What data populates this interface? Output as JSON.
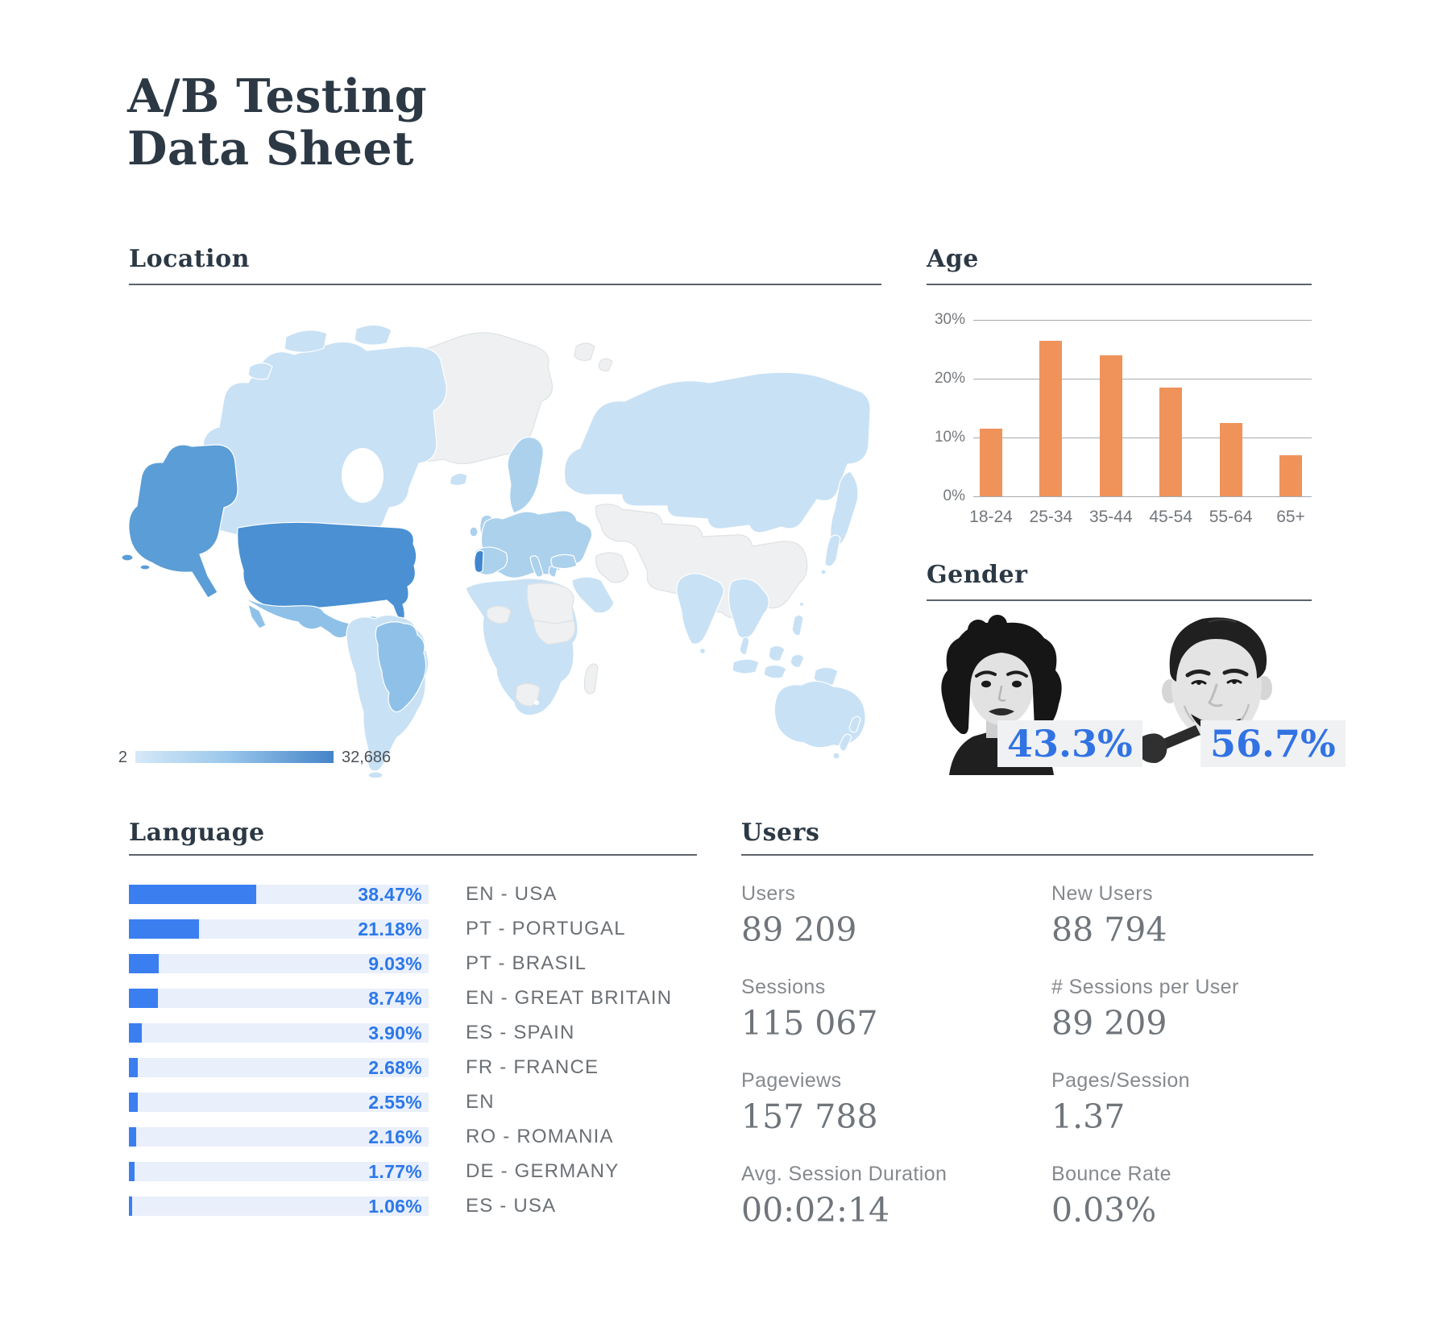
{
  "title": {
    "line1": "A/B Testing",
    "line2": "Data Sheet"
  },
  "sections": {
    "location": {
      "heading": "Location",
      "legend_min": "2",
      "legend_max": "32,686"
    },
    "age": {
      "heading": "Age",
      "yticks": [
        "30%",
        "20%",
        "10%",
        "0%"
      ],
      "categories": [
        "18-24",
        "25-34",
        "35-44",
        "45-54",
        "55-64",
        "65+"
      ],
      "values": [
        11.5,
        26.5,
        24,
        18.5,
        12.5,
        7
      ]
    },
    "gender": {
      "heading": "Gender",
      "female_pct": "43.3%",
      "male_pct": "56.7%"
    },
    "language": {
      "heading": "Language",
      "items": [
        {
          "pct": "38.47%",
          "value": 38.47,
          "label": "EN - USA"
        },
        {
          "pct": "21.18%",
          "value": 21.18,
          "label": "PT - PORTUGAL"
        },
        {
          "pct": "9.03%",
          "value": 9.03,
          "label": "PT - BRASIL"
        },
        {
          "pct": "8.74%",
          "value": 8.74,
          "label": "EN - GREAT BRITAIN"
        },
        {
          "pct": "3.90%",
          "value": 3.9,
          "label": "ES - SPAIN"
        },
        {
          "pct": "2.68%",
          "value": 2.68,
          "label": "FR - FRANCE"
        },
        {
          "pct": "2.55%",
          "value": 2.55,
          "label": "EN"
        },
        {
          "pct": "2.16%",
          "value": 2.16,
          "label": "RO - ROMANIA"
        },
        {
          "pct": "1.77%",
          "value": 1.77,
          "label": "DE - GERMANY"
        },
        {
          "pct": "1.06%",
          "value": 1.06,
          "label": "ES - USA"
        }
      ]
    },
    "users": {
      "heading": "Users",
      "stats": [
        {
          "label": "Users",
          "value": "89 209"
        },
        {
          "label": "New Users",
          "value": "88 794"
        },
        {
          "label": "Sessions",
          "value": "115 067"
        },
        {
          "label": "# Sessions per User",
          "value": "89 209"
        },
        {
          "label": "Pageviews",
          "value": "157 788"
        },
        {
          "label": "Pages/Session",
          "value": "1.37"
        },
        {
          "label": "Avg. Session Duration",
          "value": "00:02:14"
        },
        {
          "label": "Bounce Rate",
          "value": "0.03%"
        }
      ]
    }
  },
  "colors": {
    "heading_dark": "#2c3945",
    "age_bar_orange": "#ef935b",
    "language_blue": "#3b7ef0",
    "gender_blue": "#3273e3",
    "map_scale_low": "#d6e9f8",
    "map_scale_high": "#4484c8"
  },
  "chart_data": [
    {
      "type": "heatmap",
      "subtype": "world-choropleth",
      "title": "Location",
      "colorscale_range": [
        2,
        32686
      ],
      "legend_labels": [
        "2",
        "32,686"
      ],
      "highlights": [
        {
          "region": "USA",
          "level": "highest"
        },
        {
          "region": "Alaska",
          "level": "high"
        },
        {
          "region": "Portugal",
          "level": "high"
        },
        {
          "region": "Brazil",
          "level": "medium"
        },
        {
          "region": "Mexico / Central America",
          "level": "medium"
        },
        {
          "region": "Europe",
          "level": "low-medium"
        },
        {
          "region": "Canada / Russia / Africa / India / Australia",
          "level": "low"
        },
        {
          "region": "Greenland / China / Central Asia",
          "level": "no-data"
        }
      ]
    },
    {
      "type": "bar",
      "title": "Age",
      "categories": [
        "18-24",
        "25-34",
        "35-44",
        "45-54",
        "55-64",
        "65+"
      ],
      "values": [
        11.5,
        26.5,
        24,
        18.5,
        12.5,
        7
      ],
      "ylim": [
        0,
        30
      ],
      "yticks": [
        "0%",
        "10%",
        "20%",
        "30%"
      ],
      "grid": true,
      "bar_color": "#ef935b"
    },
    {
      "type": "pie",
      "title": "Gender",
      "categories": [
        "Female",
        "Male"
      ],
      "values": [
        43.3,
        56.7
      ],
      "value_labels": [
        "43.3%",
        "56.7%"
      ]
    },
    {
      "type": "bar",
      "orientation": "horizontal",
      "title": "Language",
      "categories": [
        "EN - USA",
        "PT - PORTUGAL",
        "PT - BRASIL",
        "EN - GREAT BRITAIN",
        "ES - SPAIN",
        "FR - FRANCE",
        "EN",
        "RO - ROMANIA",
        "DE - GERMANY",
        "ES - USA"
      ],
      "values": [
        38.47,
        21.18,
        9.03,
        8.74,
        3.9,
        2.68,
        2.55,
        2.16,
        1.77,
        1.06
      ],
      "value_labels": [
        "38.47%",
        "21.18%",
        "9.03%",
        "8.74%",
        "3.90%",
        "2.68%",
        "2.55%",
        "2.16%",
        "1.77%",
        "1.06%"
      ]
    },
    {
      "type": "table",
      "title": "Users",
      "rows": [
        [
          "Users",
          "89 209"
        ],
        [
          "New Users",
          "88 794"
        ],
        [
          "Sessions",
          "115 067"
        ],
        [
          "# Sessions per User",
          "89 209"
        ],
        [
          "Pageviews",
          "157 788"
        ],
        [
          "Pages/Session",
          "1.37"
        ],
        [
          "Avg. Session Duration",
          "00:02:14"
        ],
        [
          "Bounce Rate",
          "0.03%"
        ]
      ]
    }
  ]
}
